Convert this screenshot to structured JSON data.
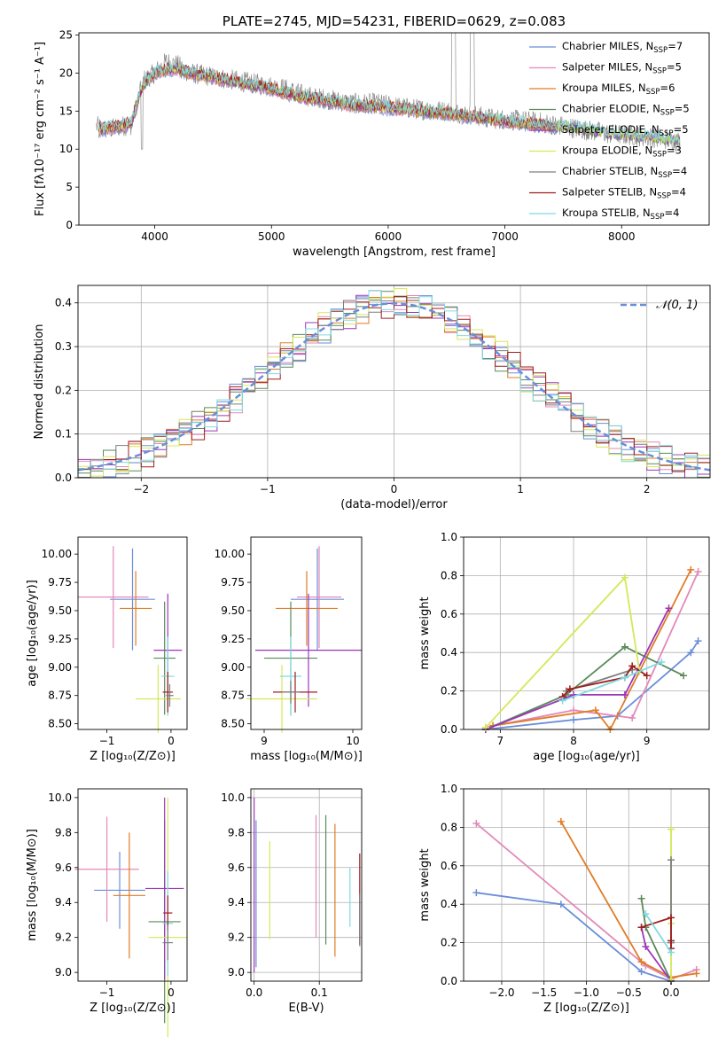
{
  "colors": {
    "Chabrier MILES": "#6a8ed8",
    "Salpeter MILES": "#e389b9",
    "Kroupa MILES": "#e07c26",
    "Chabrier ELODIE": "#5a8a5a",
    "Salpeter ELODIE": "#9b37b8",
    "Kroupa ELODIE": "#d4e857",
    "Chabrier STELIB": "#7f7f7f",
    "Salpeter STELIB": "#a01d1d",
    "Kroupa STELIB": "#7fdbe0",
    "normal": "#6a8ed8"
  },
  "chart_data": [
    {
      "id": "spectrum",
      "type": "line",
      "title": "PLATE=2745, MJD=54231, FIBERID=0629, z=0.083",
      "xlabel": "wavelength [Angstrom, rest frame]",
      "ylabel": "Flux [fλ10⁻¹⁷ erg cm⁻² s⁻¹ A⁻¹]",
      "xlim": [
        3350,
        8750
      ],
      "ylim": [
        0,
        25.3
      ],
      "xticks": [
        "4000",
        "5000",
        "6000",
        "7000",
        "8000"
      ],
      "yticks": [
        "0",
        "5",
        "10",
        "15",
        "20",
        "25"
      ],
      "legend_position": "top-right",
      "legend": [
        {
          "name": "Chabrier MILES",
          "nssp": "7"
        },
        {
          "name": "Salpeter MILES",
          "nssp": "5"
        },
        {
          "name": "Kroupa MILES",
          "nssp": "6"
        },
        {
          "name": "Chabrier ELODIE",
          "nssp": "5"
        },
        {
          "name": "Salpeter ELODIE",
          "nssp": "5"
        },
        {
          "name": "Kroupa ELODIE",
          "nssp": "3"
        },
        {
          "name": "Chabrier STELIB",
          "nssp": "4"
        },
        {
          "name": "Salpeter STELIB",
          "nssp": "4"
        },
        {
          "name": "Kroupa STELIB",
          "nssp": "4"
        }
      ],
      "nssp_prefix": "N",
      "nssp_sub": "SSP",
      "nssp_eq": "=",
      "data_curve": {
        "x": [
          3500,
          3600,
          3700,
          3800,
          3900,
          4000,
          4100,
          4200,
          4300,
          4500,
          4700,
          4900,
          5100,
          5300,
          5500,
          5700,
          5900,
          6100,
          6300,
          6500,
          6700,
          6900,
          7100,
          7300,
          7500,
          7700,
          7900,
          8100,
          8300,
          8500
        ],
        "y": [
          13,
          12.5,
          13,
          13.2,
          19,
          20,
          21.5,
          21,
          20,
          19.5,
          19,
          18.5,
          18,
          17,
          16.5,
          16,
          16,
          15.5,
          15.2,
          15,
          14.5,
          14,
          13.8,
          13.5,
          13,
          12.5,
          12,
          11.8,
          11.5,
          11
        ]
      },
      "model_curve": {
        "x": [
          3500,
          3600,
          3700,
          3800,
          3900,
          4000,
          4100,
          4200,
          4300,
          4500,
          4700,
          4900,
          5100,
          5300,
          5500,
          5700,
          5900,
          6100,
          6300,
          6500,
          6700,
          6900,
          7100,
          7300,
          7450
        ],
        "y": [
          12.5,
          12.8,
          13,
          13.5,
          18.5,
          20,
          20.5,
          20.5,
          20,
          19.5,
          18.8,
          18.3,
          17.5,
          16.8,
          16.3,
          15.8,
          15.6,
          15.3,
          15,
          14.8,
          14.3,
          13.9,
          13.5,
          13.2,
          12.8
        ]
      }
    },
    {
      "id": "residuals",
      "type": "bar",
      "xlabel": "(data-model)/error",
      "ylabel": "Normed distribution",
      "xlim": [
        -2.5,
        2.5
      ],
      "ylim": [
        0,
        0.44
      ],
      "xticks": [
        "−2",
        "−1",
        "0",
        "1",
        "2"
      ],
      "yticks": [
        "0.0",
        "0.1",
        "0.2",
        "0.3",
        "0.4"
      ],
      "grid": true,
      "legend_label": "𝒩(0, 1)",
      "legend_position": "top-right",
      "bin_width": 0.1
    },
    {
      "id": "age-z",
      "type": "scatter",
      "xlabel": "Z [log₁₀(Z/Z⊙)]",
      "ylabel": "age  [log₁₀(age/yr)]",
      "xlim": [
        -1.45,
        0.25
      ],
      "ylim": [
        8.45,
        10.15
      ],
      "xticks": [
        "−1",
        "0"
      ],
      "yticks": [
        "8.50",
        "8.75",
        "9.00",
        "9.25",
        "9.50",
        "9.75",
        "10.00"
      ],
      "points": [
        {
          "model": "Chabrier MILES",
          "x": -0.6,
          "xerr": 0.35,
          "y": 9.6,
          "yerr": 0.45
        },
        {
          "model": "Salpeter MILES",
          "x": -0.9,
          "xerr": 0.55,
          "y": 9.62,
          "yerr": 0.45
        },
        {
          "model": "Kroupa MILES",
          "x": -0.55,
          "xerr": 0.25,
          "y": 9.52,
          "yerr": 0.33
        },
        {
          "model": "Chabrier ELODIE",
          "x": -0.1,
          "xerr": 0.17,
          "y": 9.08,
          "yerr": 0.5
        },
        {
          "model": "Salpeter ELODIE",
          "x": -0.05,
          "xerr": 0.22,
          "y": 9.15,
          "yerr": 0.5
        },
        {
          "model": "Kroupa ELODIE",
          "x": -0.2,
          "xerr": 0.35,
          "y": 8.72,
          "yerr": 0.3
        },
        {
          "model": "Kroupa STELIB",
          "x": -0.05,
          "xerr": 0.1,
          "y": 8.92,
          "yerr": 0.35
        },
        {
          "model": "Salpeter STELIB",
          "x": -0.05,
          "xerr": 0.08,
          "y": 8.78,
          "yerr": 0.18
        },
        {
          "model": "Chabrier STELIB",
          "x": -0.02,
          "xerr": 0.06,
          "y": 8.75,
          "yerr": 0.1
        }
      ]
    },
    {
      "id": "age-mass",
      "type": "scatter",
      "xlabel": "mass [log₁₀(M/M⊙)]",
      "ylabel": "",
      "xlim": [
        8.85,
        10.1
      ],
      "ylim": [
        8.45,
        10.15
      ],
      "xticks": [
        "9",
        "10"
      ],
      "yticks": [
        "8.50",
        "8.75",
        "9.00",
        "9.25",
        "9.50",
        "9.75",
        "10.00"
      ],
      "points": [
        {
          "model": "Chabrier MILES",
          "x": 9.6,
          "xerr": 0.3,
          "y": 9.6,
          "yerr": 0.45
        },
        {
          "model": "Salpeter MILES",
          "x": 9.62,
          "xerr": 0.25,
          "y": 9.62,
          "yerr": 0.45
        },
        {
          "model": "Kroupa MILES",
          "x": 9.48,
          "xerr": 0.35,
          "y": 9.52,
          "yerr": 0.33
        },
        {
          "model": "Chabrier ELODIE",
          "x": 9.3,
          "xerr": 0.3,
          "y": 9.08,
          "yerr": 0.5
        },
        {
          "model": "Salpeter ELODIE",
          "x": 9.5,
          "xerr": 0.6,
          "y": 9.15,
          "yerr": 0.5
        },
        {
          "model": "Kroupa ELODIE",
          "x": 9.2,
          "xerr": 0.4,
          "y": 8.72,
          "yerr": 0.3
        },
        {
          "model": "Kroupa STELIB",
          "x": 9.3,
          "xerr": 0.12,
          "y": 8.92,
          "yerr": 0.35
        },
        {
          "model": "Salpeter STELIB",
          "x": 9.35,
          "xerr": 0.25,
          "y": 8.78,
          "yerr": 0.18
        },
        {
          "model": "Chabrier STELIB",
          "x": 9.3,
          "xerr": 0.1,
          "y": 8.78,
          "yerr": 0.1
        }
      ]
    },
    {
      "id": "weight-age",
      "type": "line",
      "xlabel": "age  [log₁₀(age/yr)]",
      "ylabel": "mass weight",
      "xlim": [
        6.5,
        9.85
      ],
      "ylim": [
        0,
        1
      ],
      "xticks": [
        "7",
        "8",
        "9"
      ],
      "yticks": [
        "0.0",
        "0.2",
        "0.4",
        "0.6",
        "0.8",
        "1.0"
      ],
      "grid": true,
      "series": [
        {
          "model": "Chabrier MILES",
          "x": [
            6.8,
            8.0,
            8.6,
            9.6,
            9.7
          ],
          "y": [
            0.0,
            0.05,
            0.07,
            0.4,
            0.46
          ]
        },
        {
          "model": "Salpeter MILES",
          "x": [
            6.8,
            8.0,
            8.8,
            9.7
          ],
          "y": [
            0.01,
            0.1,
            0.06,
            0.82
          ]
        },
        {
          "model": "Kroupa MILES",
          "x": [
            6.9,
            8.3,
            8.5,
            9.6
          ],
          "y": [
            0.02,
            0.1,
            0.0,
            0.83
          ]
        },
        {
          "model": "Chabrier ELODIE",
          "x": [
            6.8,
            7.9,
            8.7,
            9.5
          ],
          "y": [
            0.0,
            0.18,
            0.43,
            0.28
          ]
        },
        {
          "model": "Salpeter ELODIE",
          "x": [
            6.8,
            8.0,
            8.7,
            9.3
          ],
          "y": [
            0.0,
            0.18,
            0.18,
            0.63
          ]
        },
        {
          "model": "Kroupa ELODIE",
          "x": [
            6.8,
            8.7,
            8.9
          ],
          "y": [
            0.01,
            0.79,
            0.3
          ]
        },
        {
          "model": "Chabrier STELIB",
          "x": [
            7.9,
            8.8
          ],
          "y": [
            0.2,
            0.31
          ]
        },
        {
          "model": "Salpeter STELIB",
          "x": [
            7.85,
            7.95,
            8.7,
            8.8,
            9.0
          ],
          "y": [
            0.17,
            0.21,
            0.27,
            0.33,
            0.28
          ]
        },
        {
          "model": "Kroupa STELIB",
          "x": [
            7.85,
            8.7,
            9.2
          ],
          "y": [
            0.15,
            0.27,
            0.35
          ]
        }
      ]
    },
    {
      "id": "mass-z",
      "type": "scatter",
      "xlabel": "Z [log₁₀(Z/Z⊙)]",
      "ylabel": "mass [log₁₀(M/M⊙)]",
      "xlim": [
        -1.45,
        0.25
      ],
      "ylim": [
        8.95,
        10.05
      ],
      "xticks": [
        "−1",
        "0"
      ],
      "yticks": [
        "9.0",
        "9.2",
        "9.4",
        "9.6",
        "9.8",
        "10.0"
      ],
      "points": [
        {
          "model": "Chabrier MILES",
          "x": -0.8,
          "xerr": 0.4,
          "y": 9.47,
          "yerr": 0.22
        },
        {
          "model": "Salpeter MILES",
          "x": -1.0,
          "xerr": 0.5,
          "y": 9.59,
          "yerr": 0.3
        },
        {
          "model": "Kroupa MILES",
          "x": -0.65,
          "xerr": 0.25,
          "y": 9.44,
          "yerr": 0.36
        },
        {
          "model": "Chabrier ELODIE",
          "x": -0.1,
          "xerr": 0.25,
          "y": 9.29,
          "yerr": 0.58
        },
        {
          "model": "Salpeter ELODIE",
          "x": -0.1,
          "xerr": 0.3,
          "y": 9.48,
          "yerr": 0.52
        },
        {
          "model": "Kroupa ELODIE",
          "x": -0.05,
          "xerr": 0.3,
          "y": 9.2,
          "yerr": 0.8
        },
        {
          "model": "Kroupa STELIB",
          "x": -0.05,
          "xerr": 0.08,
          "y": 9.28,
          "yerr": 0.3
        },
        {
          "model": "Salpeter STELIB",
          "x": -0.05,
          "xerr": 0.07,
          "y": 9.34,
          "yerr": 0.1
        },
        {
          "model": "Chabrier STELIB",
          "x": -0.05,
          "xerr": 0.08,
          "y": 9.17,
          "yerr": 0.1
        }
      ]
    },
    {
      "id": "mass-ebv",
      "type": "scatter",
      "xlabel": "E(B-V)",
      "ylabel": "",
      "xlim": [
        -0.005,
        0.165
      ],
      "ylim": [
        8.95,
        10.05
      ],
      "xticks": [
        "0.0",
        "0.1"
      ],
      "yticks": [
        "9.0",
        "9.2",
        "9.4",
        "9.6",
        "9.8",
        "10.0"
      ],
      "grid": true,
      "points": [
        {
          "model": "Chabrier MILES",
          "x": 0.003,
          "y": 9.45,
          "yerr": 0.42
        },
        {
          "model": "Salpeter MILES",
          "x": 0.095,
          "y": 9.55,
          "yerr": 0.35
        },
        {
          "model": "Kroupa MILES",
          "x": 0.124,
          "y": 9.47,
          "yerr": 0.38
        },
        {
          "model": "Chabrier ELODIE",
          "x": 0.11,
          "y": 9.53,
          "yerr": 0.37
        },
        {
          "model": "Salpeter ELODIE",
          "x": 0.0,
          "y": 9.5,
          "yerr": 0.5
        },
        {
          "model": "Kroupa ELODIE",
          "x": 0.024,
          "y": 9.47,
          "yerr": 0.28
        },
        {
          "model": "Kroupa STELIB",
          "x": 0.147,
          "y": 9.43,
          "yerr": 0.17
        },
        {
          "model": "Salpeter STELIB",
          "x": 0.162,
          "y": 9.42,
          "yerr": 0.26
        },
        {
          "model": "Chabrier STELIB",
          "x": 0.162,
          "y": 9.3,
          "yerr": 0.15
        }
      ]
    },
    {
      "id": "weight-z",
      "type": "line",
      "xlabel": "Z [log₁₀(Z/Z⊙)]",
      "ylabel": "mass weight",
      "xlim": [
        -2.45,
        0.45
      ],
      "ylim": [
        0,
        1
      ],
      "xticks": [
        "−2.0",
        "−1.5",
        "−1.0",
        "−0.5",
        "0.0"
      ],
      "yticks": [
        "0.0",
        "0.2",
        "0.4",
        "0.6",
        "0.8",
        "1.0"
      ],
      "grid": true,
      "series": [
        {
          "model": "Chabrier MILES",
          "x": [
            -2.3,
            -1.3,
            -0.35,
            0.0
          ],
          "y": [
            0.46,
            0.4,
            0.05,
            0.0
          ]
        },
        {
          "model": "Salpeter MILES",
          "x": [
            -2.3,
            -0.3,
            0.0,
            0.3
          ],
          "y": [
            0.82,
            0.08,
            0.01,
            0.06
          ]
        },
        {
          "model": "Kroupa MILES",
          "x": [
            -1.3,
            -0.35,
            0.0,
            0.3
          ],
          "y": [
            0.83,
            0.1,
            0.02,
            0.04
          ]
        },
        {
          "model": "Chabrier ELODIE",
          "x": [
            -0.35,
            -0.3,
            0.0
          ],
          "y": [
            0.43,
            0.28,
            0.0
          ]
        },
        {
          "model": "Salpeter ELODIE",
          "x": [
            -0.35,
            -0.3,
            0.0
          ],
          "y": [
            0.28,
            0.18,
            0.0
          ]
        },
        {
          "model": "Kroupa ELODIE",
          "x": [
            0.0,
            0.0,
            0.0
          ],
          "y": [
            0.79,
            0.3,
            0.01
          ]
        },
        {
          "model": "Chabrier STELIB",
          "x": [
            0.0,
            0.0
          ],
          "y": [
            0.2,
            0.63
          ]
        },
        {
          "model": "Salpeter STELIB",
          "x": [
            -0.35,
            0.0,
            0.0,
            0.0
          ],
          "y": [
            0.28,
            0.33,
            0.21,
            0.17
          ]
        },
        {
          "model": "Kroupa STELIB",
          "x": [
            -0.3,
            0.0
          ],
          "y": [
            0.35,
            0.15
          ]
        }
      ]
    }
  ]
}
